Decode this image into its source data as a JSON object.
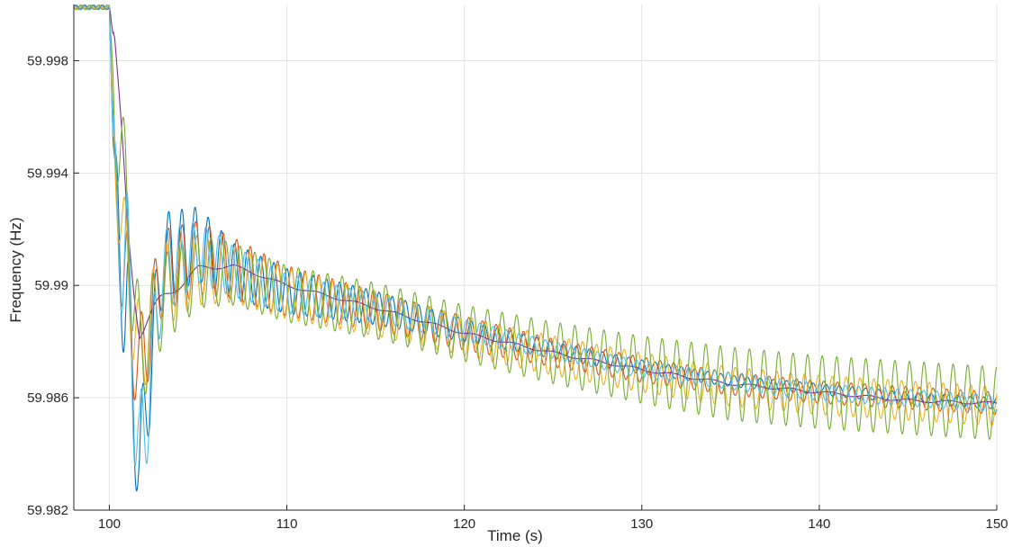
{
  "chart_data": {
    "type": "line",
    "title": "",
    "xlabel": "Time (s)",
    "ylabel": "Frequency (Hz)",
    "xlim": [
      98,
      150
    ],
    "ylim": [
      59.982,
      60.0
    ],
    "xticks": [
      100,
      110,
      120,
      130,
      140,
      150
    ],
    "yticks": [
      59.982,
      59.986,
      59.99,
      59.994,
      59.998
    ],
    "ytick_labels": [
      "59.982",
      "59.986",
      "59.99",
      "59.994",
      "59.998"
    ],
    "grid": true,
    "legend": "none",
    "colors": {
      "blue": "#0072BD",
      "orange": "#D95319",
      "yellow": "#EDB120",
      "purple": "#7E2F8E",
      "green": "#77AC30",
      "cyan": "#4DBEEE"
    },
    "series": [
      {
        "color": "blue",
        "x": [
          98,
          100,
          100.3,
          101,
          101.7,
          103,
          105,
          107,
          110,
          115,
          120,
          125,
          130,
          135,
          140,
          145,
          150
        ],
        "y": [
          59.9999,
          59.9999,
          59.993,
          59.989,
          59.9835,
          59.991,
          59.9915,
          59.9905,
          59.9898,
          59.9892,
          59.9884,
          59.9877,
          59.9871,
          59.9866,
          59.9863,
          59.986,
          59.9858
        ],
        "amplitude": [
          0,
          0,
          0.002,
          0.003,
          0.002,
          0.0016,
          0.0013,
          0.001,
          0.0008,
          0.0006,
          0.0004,
          0.0003,
          0.00025,
          0.0002,
          0.0002,
          0.0002,
          0.0002
        ]
      },
      {
        "color": "orange",
        "x": [
          98,
          100,
          100.3,
          101,
          101.7,
          103,
          105,
          107,
          110,
          115,
          120,
          125,
          130,
          135,
          140,
          145,
          150
        ],
        "y": [
          59.9999,
          59.9999,
          59.9935,
          59.9895,
          59.987,
          59.9905,
          59.991,
          59.9906,
          59.9898,
          59.9891,
          59.9883,
          59.9876,
          59.987,
          59.9865,
          59.9862,
          59.986,
          59.9858
        ],
        "amplitude": [
          0,
          0,
          0.0018,
          0.0025,
          0.0018,
          0.0015,
          0.0013,
          0.0011,
          0.0009,
          0.0007,
          0.0006,
          0.0005,
          0.00045,
          0.0004,
          0.0004,
          0.0004,
          0.0004
        ]
      },
      {
        "color": "yellow",
        "x": [
          98,
          100,
          100.3,
          101,
          101.7,
          103,
          105,
          107,
          110,
          115,
          120,
          125,
          130,
          135,
          140,
          145,
          150
        ],
        "y": [
          59.9999,
          59.9999,
          59.9945,
          59.9905,
          59.9875,
          59.99,
          59.9905,
          59.9904,
          59.9897,
          59.989,
          59.9882,
          59.9875,
          59.9869,
          59.9864,
          59.9861,
          59.9859,
          59.9857
        ],
        "amplitude": [
          0,
          0,
          0.0015,
          0.002,
          0.0018,
          0.0015,
          0.0012,
          0.001,
          0.0009,
          0.0008,
          0.0007,
          0.0007,
          0.0007,
          0.0007,
          0.0007,
          0.0007,
          0.0007
        ]
      },
      {
        "color": "purple",
        "x": [
          98,
          100,
          100.3,
          101,
          101.7,
          103,
          105,
          107,
          110,
          115,
          120,
          125,
          130,
          135,
          140,
          145,
          150
        ],
        "y": [
          59.9999,
          59.9999,
          59.9985,
          59.992,
          59.9885,
          59.9895,
          59.9906,
          59.9907,
          59.99,
          59.9892,
          59.9883,
          59.9876,
          59.987,
          59.9865,
          59.9862,
          59.9859,
          59.9858
        ],
        "amplitude": [
          0,
          0,
          0.0005,
          0.001,
          0.0004,
          0.0002,
          0.0001,
          5e-05,
          5e-05,
          5e-05,
          5e-05,
          5e-05,
          5e-05,
          5e-05,
          5e-05,
          5e-05,
          5e-05
        ]
      },
      {
        "color": "green",
        "x": [
          98,
          100,
          100.3,
          101,
          101.7,
          103,
          105,
          107,
          110,
          115,
          120,
          125,
          130,
          135,
          140,
          145,
          150
        ],
        "y": [
          59.9999,
          59.9999,
          59.9965,
          59.9925,
          59.9875,
          59.9895,
          59.9905,
          59.9904,
          59.9897,
          59.9891,
          59.9883,
          59.9876,
          59.987,
          59.9865,
          59.9862,
          59.986,
          59.9858
        ],
        "amplitude": [
          0,
          0,
          0.002,
          0.0025,
          0.002,
          0.0016,
          0.0013,
          0.0011,
          0.001,
          0.001,
          0.001,
          0.0011,
          0.0012,
          0.0013,
          0.0013,
          0.0013,
          0.0013
        ]
      },
      {
        "color": "cyan",
        "x": [
          98,
          100,
          100.3,
          101,
          101.7,
          103,
          105,
          107,
          110,
          115,
          120,
          125,
          130,
          135,
          140,
          145,
          150
        ],
        "y": [
          59.9999,
          59.9999,
          59.993,
          59.9905,
          59.9835,
          59.9905,
          59.9912,
          59.9905,
          59.9897,
          59.9892,
          59.9884,
          59.9877,
          59.987,
          59.9866,
          59.9862,
          59.986,
          59.9858
        ],
        "amplitude": [
          0,
          0,
          0.0022,
          0.003,
          0.0024,
          0.0015,
          0.0011,
          0.0009,
          0.0007,
          0.0005,
          0.0004,
          0.0003,
          0.0003,
          0.0003,
          0.0003,
          0.0003,
          0.0003
        ]
      }
    ]
  }
}
